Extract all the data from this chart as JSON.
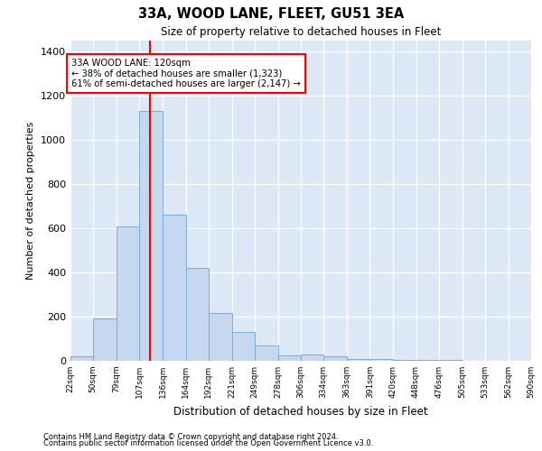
{
  "title": "33A, WOOD LANE, FLEET, GU51 3EA",
  "subtitle": "Size of property relative to detached houses in Fleet",
  "xlabel": "Distribution of detached houses by size in Fleet",
  "ylabel": "Number of detached properties",
  "bar_color": "#c5d8ef",
  "bar_edge_color": "#7aadd4",
  "background_color": "#dce8f5",
  "grid_color": "#ffffff",
  "red_line_x": 120,
  "annotation_box_text": "33A WOOD LANE: 120sqm\n← 38% of detached houses are smaller (1,323)\n61% of semi-detached houses are larger (2,147) →",
  "footer_line1": "Contains HM Land Registry data © Crown copyright and database right 2024.",
  "footer_line2": "Contains public sector information licensed under the Open Government Licence v3.0.",
  "bin_edges": [
    22,
    50,
    79,
    107,
    136,
    164,
    192,
    221,
    249,
    278,
    306,
    334,
    363,
    391,
    420,
    448,
    476,
    505,
    533,
    562,
    590
  ],
  "bar_heights": [
    20,
    190,
    610,
    1130,
    660,
    420,
    215,
    130,
    70,
    25,
    30,
    20,
    10,
    7,
    5,
    5,
    3,
    2,
    1,
    1
  ],
  "ylim": [
    0,
    1450
  ],
  "yticks": [
    0,
    200,
    400,
    600,
    800,
    1000,
    1200,
    1400
  ]
}
